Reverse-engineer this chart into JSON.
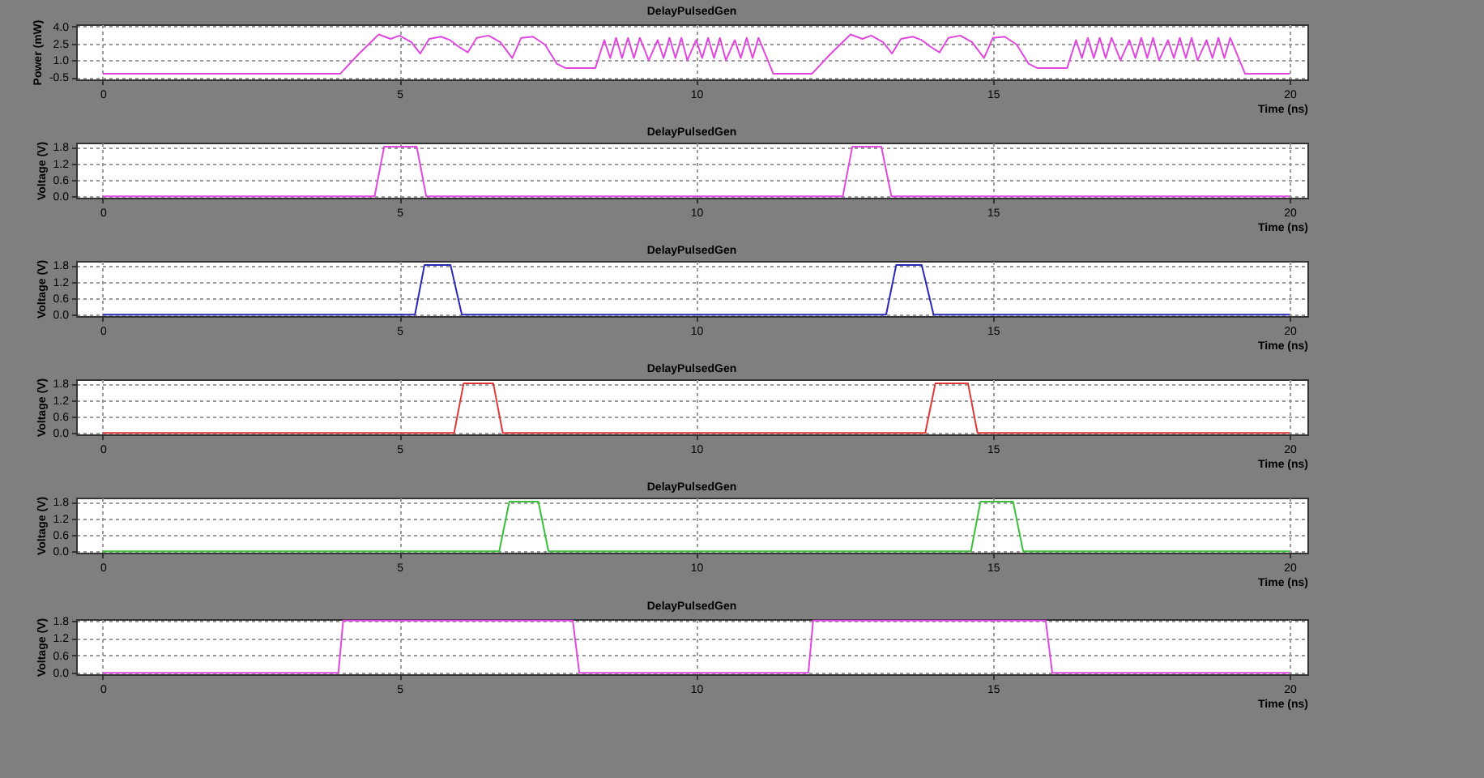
{
  "chart_data": [
    {
      "type": "line",
      "title": "DelayPulsedGen",
      "xlabel": "Time (ns)",
      "ylabel": "Power (mW)",
      "xlim": [
        -0.45,
        20.3
      ],
      "xticks": [
        0,
        5,
        10,
        15,
        20
      ],
      "ylim": [
        -0.7,
        4.2
      ],
      "yticks": [
        {
          "value": -0.5,
          "label": "-0.5"
        },
        {
          "value": 1,
          "label": "1.0"
        },
        {
          "value": 2.5,
          "label": "2.5"
        },
        {
          "value": 4,
          "label": "4.0"
        }
      ],
      "grid": true,
      "x": [
        0,
        4.0,
        4.3,
        4.65,
        4.85,
        5.0,
        5.2,
        5.35,
        5.5,
        5.7,
        5.85,
        6.0,
        6.15,
        6.3,
        6.5,
        6.7,
        6.9,
        7.05,
        7.25,
        7.45,
        7.65,
        7.8,
        8.3,
        8.45,
        8.55,
        8.65,
        8.75,
        8.85,
        8.95,
        9.05,
        9.2,
        9.35,
        9.45,
        9.55,
        9.65,
        9.75,
        9.85,
        10.0,
        10.1,
        10.2,
        10.3,
        10.4,
        10.5,
        10.65,
        10.75,
        10.85,
        10.95,
        11.05,
        11.3,
        11.95,
        12.25,
        12.6,
        12.8,
        12.95,
        13.15,
        13.3,
        13.45,
        13.65,
        13.8,
        13.95,
        14.1,
        14.25,
        14.45,
        14.65,
        14.85,
        15.0,
        15.2,
        15.4,
        15.6,
        15.75,
        16.25,
        16.4,
        16.5,
        16.6,
        16.7,
        16.8,
        16.9,
        17.0,
        17.15,
        17.3,
        17.4,
        17.5,
        17.6,
        17.7,
        17.8,
        17.95,
        18.05,
        18.15,
        18.25,
        18.35,
        18.45,
        18.6,
        18.7,
        18.8,
        18.9,
        19.0,
        19.25,
        20
      ],
      "series": [
        {
          "color": "#e048e0",
          "values": [
            -0.2,
            -0.2,
            1.5,
            3.3,
            2.9,
            3.2,
            2.6,
            1.6,
            2.9,
            3.1,
            2.8,
            2.2,
            1.7,
            3.0,
            3.2,
            2.6,
            1.2,
            3.0,
            3.1,
            2.4,
            0.7,
            0.3,
            0.3,
            2.8,
            1.2,
            3.0,
            1.2,
            3.0,
            1.2,
            3.0,
            1.0,
            2.8,
            1.2,
            3.0,
            1.2,
            3.0,
            1.0,
            2.8,
            1.2,
            3.0,
            1.2,
            3.0,
            1.0,
            2.8,
            1.2,
            3.0,
            1.2,
            3.0,
            -0.2,
            -0.2,
            1.5,
            3.3,
            2.9,
            3.2,
            2.6,
            1.6,
            2.9,
            3.1,
            2.8,
            2.2,
            1.7,
            3.0,
            3.2,
            2.6,
            1.2,
            3.0,
            3.1,
            2.4,
            0.7,
            0.3,
            0.3,
            2.8,
            1.2,
            3.0,
            1.2,
            3.0,
            1.2,
            3.0,
            1.0,
            2.8,
            1.2,
            3.0,
            1.2,
            3.0,
            1.0,
            2.8,
            1.2,
            3.0,
            1.2,
            3.0,
            1.0,
            2.8,
            1.2,
            3.0,
            1.2,
            3.0,
            -0.2,
            -0.2
          ]
        }
      ]
    },
    {
      "type": "line",
      "title": "DelayPulsedGen",
      "xlabel": "Time (ns)",
      "ylabel": "Voltage (V)",
      "xlim": [
        -0.45,
        20.3
      ],
      "xticks": [
        0,
        5,
        10,
        15,
        20
      ],
      "ylim": [
        -0.05,
        1.95
      ],
      "yticks": [
        {
          "value": 0,
          "label": "0.0"
        },
        0.6,
        1.2,
        1.8
      ],
      "grid": true,
      "x": [
        0,
        4.58,
        4.74,
        5.29,
        5.45,
        12.47,
        12.63,
        13.12,
        13.29,
        20
      ],
      "series": [
        {
          "color": "#e048e0",
          "values": [
            0,
            0,
            1.8,
            1.8,
            0,
            0,
            1.8,
            1.8,
            0,
            0
          ]
        }
      ]
    },
    {
      "type": "line",
      "title": "DelayPulsedGen",
      "xlabel": "Time (ns)",
      "ylabel": "Voltage (V)",
      "xlim": [
        -0.45,
        20.3
      ],
      "xticks": [
        0,
        5,
        10,
        15,
        20
      ],
      "ylim": [
        -0.05,
        1.95
      ],
      "yticks": [
        {
          "value": 0,
          "label": "0.0"
        },
        0.6,
        1.2,
        1.8
      ],
      "grid": true,
      "x": [
        0,
        5.26,
        5.42,
        5.86,
        6.05,
        13.2,
        13.37,
        13.8,
        14.0,
        20
      ],
      "series": [
        {
          "color": "#2828b8",
          "values": [
            0,
            0,
            1.8,
            1.8,
            0,
            0,
            1.8,
            1.8,
            0,
            0
          ]
        }
      ]
    },
    {
      "type": "line",
      "title": "DelayPulsedGen",
      "xlabel": "Time (ns)",
      "ylabel": "Voltage (V)",
      "xlim": [
        -0.45,
        20.3
      ],
      "xticks": [
        0,
        5,
        10,
        15,
        20
      ],
      "ylim": [
        -0.05,
        1.95
      ],
      "yticks": [
        {
          "value": 0,
          "label": "0.0"
        },
        0.6,
        1.2,
        1.8
      ],
      "grid": true,
      "x": [
        0,
        5.92,
        6.08,
        6.58,
        6.74,
        13.86,
        14.03,
        14.58,
        14.74,
        20
      ],
      "series": [
        {
          "color": "#e03838",
          "values": [
            0,
            0,
            1.8,
            1.8,
            0,
            0,
            1.8,
            1.8,
            0,
            0
          ]
        }
      ]
    },
    {
      "type": "line",
      "title": "DelayPulsedGen",
      "xlabel": "Time (ns)",
      "ylabel": "Voltage (V)",
      "xlim": [
        -0.45,
        20.3
      ],
      "xticks": [
        0,
        5,
        10,
        15,
        20
      ],
      "ylim": [
        -0.05,
        1.95
      ],
      "yticks": [
        {
          "value": 0,
          "label": "0.0"
        },
        0.6,
        1.2,
        1.8
      ],
      "grid": true,
      "x": [
        0,
        6.68,
        6.85,
        7.34,
        7.51,
        14.63,
        14.79,
        15.34,
        15.51,
        20
      ],
      "series": [
        {
          "color": "#38c038",
          "values": [
            0,
            0,
            1.8,
            1.8,
            0,
            0,
            1.8,
            1.8,
            0,
            0
          ]
        }
      ]
    },
    {
      "type": "line",
      "title": "DelayPulsedGen",
      "xlabel": "Time (ns)",
      "ylabel": "Voltage (V)",
      "xlim": [
        -0.45,
        20.3
      ],
      "xticks": [
        0,
        5,
        10,
        15,
        20
      ],
      "ylim": [
        -0.05,
        1.85
      ],
      "yticks": [
        {
          "value": 0,
          "label": "0.0"
        },
        0.6,
        1.2,
        1.8
      ],
      "grid": true,
      "x": [
        0,
        3.97,
        4.05,
        7.92,
        8.03,
        11.89,
        11.97,
        15.89,
        16.0,
        20
      ],
      "series": [
        {
          "color": "#e048e0",
          "values": [
            0,
            0,
            1.8,
            1.8,
            0,
            0,
            1.8,
            1.8,
            0,
            0
          ]
        }
      ]
    }
  ]
}
